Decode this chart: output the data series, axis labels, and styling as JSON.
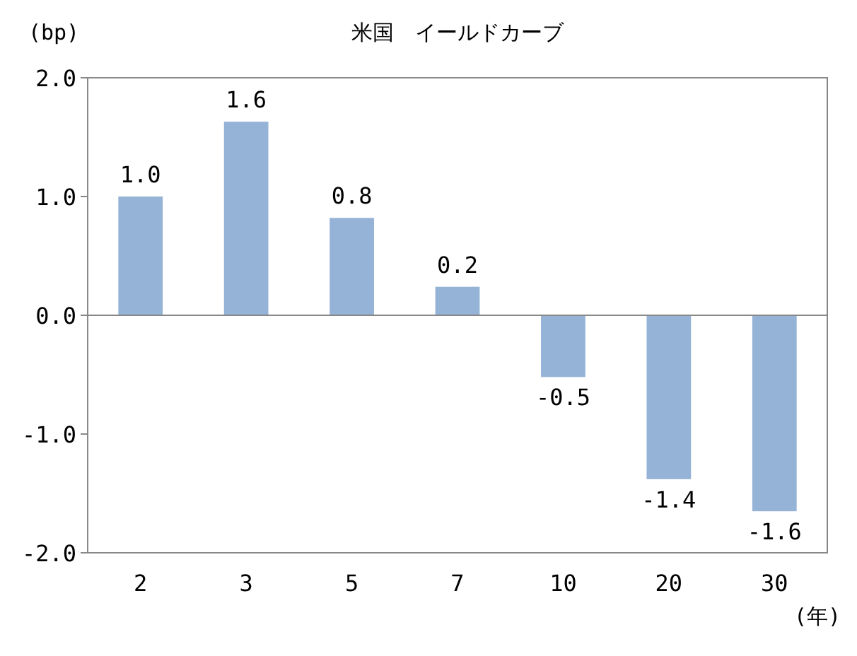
{
  "chart_data": {
    "type": "bar",
    "title": "米国　イールドカーブ",
    "ylabel": "(bp)",
    "xlabel": "(年)",
    "categories": [
      "2",
      "3",
      "5",
      "7",
      "10",
      "20",
      "30"
    ],
    "values": [
      1.0,
      1.63,
      0.82,
      0.24,
      -0.52,
      -1.38,
      -1.65
    ],
    "value_labels": [
      "1.0",
      "1.6",
      "0.8",
      "0.2",
      "-0.5",
      "-1.4",
      "-1.6"
    ],
    "color": "#95b3d7",
    "ylim": [
      -2.0,
      2.0
    ],
    "yticks": [
      {
        "value": -2,
        "label": "-2.0"
      },
      {
        "value": -1,
        "label": "-1.0"
      },
      {
        "value": 0,
        "label": "0.0"
      },
      {
        "value": 1,
        "label": "1.0"
      },
      {
        "value": 2,
        "label": "2.0"
      }
    ]
  }
}
